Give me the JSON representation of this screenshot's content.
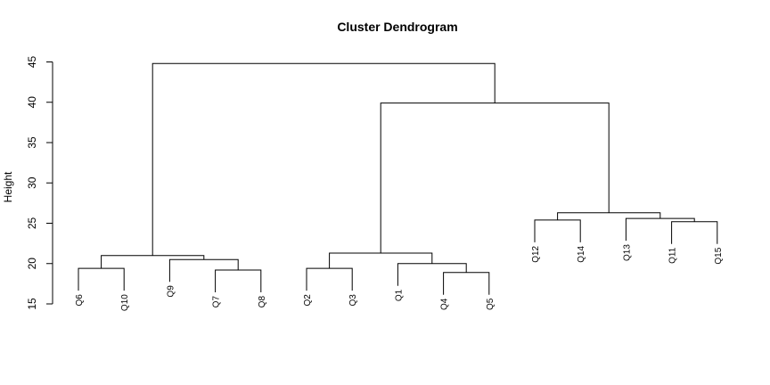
{
  "chart_data": {
    "type": "dendrogram",
    "title": "Cluster Dendrogram",
    "ylabel": "Height",
    "ylim": [
      15,
      45
    ],
    "yticks": [
      15,
      20,
      25,
      30,
      35,
      40,
      45
    ],
    "leaves": [
      {
        "label": "Q6",
        "height": 19.4
      },
      {
        "label": "Q10",
        "height": 19.4
      },
      {
        "label": "Q9",
        "height": 20.5
      },
      {
        "label": "Q7",
        "height": 19.2
      },
      {
        "label": "Q8",
        "height": 19.2
      },
      {
        "label": "Q2",
        "height": 19.4
      },
      {
        "label": "Q3",
        "height": 19.4
      },
      {
        "label": "Q1",
        "height": 20.0
      },
      {
        "label": "Q4",
        "height": 18.9
      },
      {
        "label": "Q5",
        "height": 18.9
      },
      {
        "label": "Q12",
        "height": 25.4
      },
      {
        "label": "Q14",
        "height": 25.4
      },
      {
        "label": "Q13",
        "height": 25.6
      },
      {
        "label": "Q11",
        "height": 25.2
      },
      {
        "label": "Q15",
        "height": 25.2
      }
    ],
    "merges": [
      {
        "left": "Q6",
        "right": "Q10",
        "height": 19.4
      },
      {
        "left": "Q7",
        "right": "Q8",
        "height": 19.2
      },
      {
        "left": "Q9",
        "right": "Q7-Q8",
        "height": 20.5
      },
      {
        "left": "Q6-Q10",
        "right": "Q9-Q7-Q8",
        "height": 21.0
      },
      {
        "left": "Q2",
        "right": "Q3",
        "height": 19.4
      },
      {
        "left": "Q4",
        "right": "Q5",
        "height": 18.9
      },
      {
        "left": "Q1",
        "right": "Q4-Q5",
        "height": 20.0
      },
      {
        "left": "Q2-Q3",
        "right": "Q1-Q4-Q5",
        "height": 21.3
      },
      {
        "left": "Q12",
        "right": "Q14",
        "height": 25.4
      },
      {
        "left": "Q11",
        "right": "Q15",
        "height": 25.2
      },
      {
        "left": "Q13",
        "right": "Q11-Q15",
        "height": 25.6
      },
      {
        "left": "Q12-Q14",
        "right": "Q13-Q11-Q15",
        "height": 26.3
      },
      {
        "left": "Q2-Q3-Q1-Q4-Q5",
        "right": "Q12-Q14-Q13-Q11-Q15",
        "height": 39.9
      },
      {
        "left": "Q6-Q10-Q9-Q7-Q8",
        "right": "Q2-Q3-Q1-Q4-Q5-Q12-Q14-Q13-Q11-Q15",
        "height": 44.8
      }
    ]
  }
}
